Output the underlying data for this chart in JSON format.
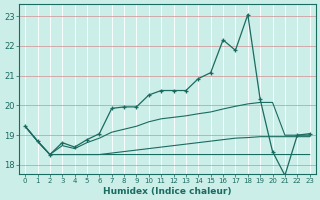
{
  "title": "",
  "xlabel": "Humidex (Indice chaleur)",
  "xlim": [
    -0.5,
    23.5
  ],
  "ylim": [
    17.7,
    23.4
  ],
  "background_color": "#cceee8",
  "line_color": "#1a6b60",
  "grid_color": "#b0d8d0",
  "line1_x": [
    0,
    1,
    2,
    3,
    4,
    5,
    6,
    7,
    8,
    9,
    10,
    11,
    12,
    13,
    14,
    15,
    16,
    17,
    18,
    19,
    20,
    21,
    22,
    23
  ],
  "line1_y": [
    19.3,
    18.8,
    18.35,
    18.75,
    18.6,
    18.85,
    19.05,
    19.9,
    19.95,
    19.95,
    20.35,
    20.5,
    20.5,
    20.5,
    20.9,
    21.1,
    22.2,
    21.85,
    23.05,
    20.2,
    18.45,
    17.65,
    19.0,
    19.05
  ],
  "line2_x": [
    0,
    1,
    2,
    3,
    4,
    5,
    6,
    7,
    8,
    9,
    10,
    11,
    12,
    13,
    14,
    15,
    16,
    17,
    18,
    19,
    20,
    21,
    22,
    23
  ],
  "line2_y": [
    19.3,
    18.8,
    18.35,
    18.65,
    18.55,
    18.75,
    18.9,
    19.1,
    19.2,
    19.3,
    19.45,
    19.55,
    19.6,
    19.65,
    19.72,
    19.78,
    19.88,
    19.97,
    20.05,
    20.1,
    20.1,
    19.0,
    19.0,
    19.0
  ],
  "line3_x": [
    0,
    1,
    2,
    3,
    4,
    5,
    6,
    7,
    8,
    9,
    10,
    11,
    12,
    13,
    14,
    15,
    16,
    17,
    18,
    19,
    20,
    21,
    22,
    23
  ],
  "line3_y": [
    19.3,
    18.8,
    18.35,
    18.35,
    18.35,
    18.35,
    18.35,
    18.35,
    18.35,
    18.35,
    18.35,
    18.35,
    18.35,
    18.35,
    18.35,
    18.35,
    18.35,
    18.35,
    18.35,
    18.35,
    18.35,
    18.35,
    18.35,
    18.35
  ],
  "line4_x": [
    0,
    1,
    2,
    3,
    4,
    5,
    6,
    7,
    8,
    9,
    10,
    11,
    12,
    13,
    14,
    15,
    16,
    17,
    18,
    19,
    20,
    21,
    22,
    23
  ],
  "line4_y": [
    19.3,
    18.8,
    18.35,
    18.35,
    18.35,
    18.35,
    18.35,
    18.4,
    18.45,
    18.5,
    18.55,
    18.6,
    18.65,
    18.7,
    18.75,
    18.8,
    18.85,
    18.9,
    18.92,
    18.95,
    18.95,
    18.95,
    18.95,
    18.95
  ],
  "yticks": [
    18,
    19,
    20,
    21,
    22,
    23
  ],
  "xticks": [
    0,
    1,
    2,
    3,
    4,
    5,
    6,
    7,
    8,
    9,
    10,
    11,
    12,
    13,
    14,
    15,
    16,
    17,
    18,
    19,
    20,
    21,
    22,
    23
  ]
}
